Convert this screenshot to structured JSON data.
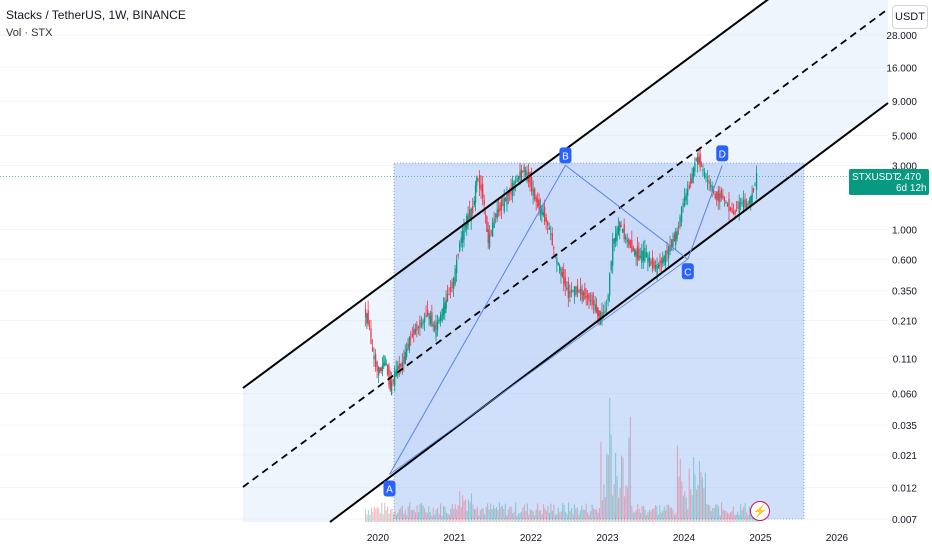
{
  "header": {
    "title": "Stacks / TetherUS, 1W, BINANCE",
    "volume_label": "Vol · STX",
    "currency": "USDT"
  },
  "price_tag": {
    "symbol": "STXUSDT",
    "price": "2.470",
    "countdown": "6d 12h"
  },
  "colors": {
    "up": "#089981",
    "down": "#f23645",
    "channel_fill": "#dbe9fb",
    "pattern_fill": "#a9c4f5",
    "marker": "#2962ff",
    "price_line": "#089981"
  },
  "chart_data": {
    "type": "candlestick",
    "scale": "log",
    "ylim": [
      0.007,
      28
    ],
    "y_ticks": [
      "28.000",
      "16.000",
      "9.000",
      "5.000",
      "3.000",
      "1.000",
      "0.600",
      "0.350",
      "0.210",
      "0.110",
      "0.060",
      "0.035",
      "0.021",
      "0.012",
      "0.007"
    ],
    "x_ticks": [
      "2020",
      "2021",
      "2022",
      "2023",
      "2024",
      "2025",
      "2026"
    ],
    "pattern_points": [
      {
        "label": "A",
        "date": 2020.15,
        "price": 0.015
      },
      {
        "label": "B",
        "date": 2022.45,
        "price": 3.0
      },
      {
        "label": "C",
        "date": 2024.05,
        "price": 0.6
      },
      {
        "label": "D",
        "date": 2024.5,
        "price": 3.0
      }
    ],
    "close_series": [
      [
        2019.83,
        0.24
      ],
      [
        2019.88,
        0.21
      ],
      [
        2019.94,
        0.12
      ],
      [
        2020.0,
        0.09
      ],
      [
        2020.05,
        0.09
      ],
      [
        2020.1,
        0.11
      ],
      [
        2020.17,
        0.065
      ],
      [
        2020.25,
        0.09
      ],
      [
        2020.33,
        0.1
      ],
      [
        2020.42,
        0.15
      ],
      [
        2020.5,
        0.18
      ],
      [
        2020.58,
        0.2
      ],
      [
        2020.66,
        0.24
      ],
      [
        2020.75,
        0.18
      ],
      [
        2020.83,
        0.23
      ],
      [
        2020.9,
        0.29
      ],
      [
        2021.0,
        0.42
      ],
      [
        2021.08,
        0.8
      ],
      [
        2021.17,
        1.2
      ],
      [
        2021.25,
        1.4
      ],
      [
        2021.3,
        2.5
      ],
      [
        2021.38,
        1.8
      ],
      [
        2021.45,
        0.8
      ],
      [
        2021.55,
        1.3
      ],
      [
        2021.66,
        1.6
      ],
      [
        2021.75,
        2.0
      ],
      [
        2021.83,
        2.4
      ],
      [
        2021.92,
        2.8
      ],
      [
        2022.0,
        2.2
      ],
      [
        2022.08,
        1.6
      ],
      [
        2022.17,
        1.3
      ],
      [
        2022.25,
        1.0
      ],
      [
        2022.33,
        0.62
      ],
      [
        2022.42,
        0.45
      ],
      [
        2022.5,
        0.33
      ],
      [
        2022.58,
        0.36
      ],
      [
        2022.66,
        0.34
      ],
      [
        2022.75,
        0.31
      ],
      [
        2022.83,
        0.28
      ],
      [
        2022.9,
        0.22
      ],
      [
        2023.0,
        0.26
      ],
      [
        2023.08,
        0.8
      ],
      [
        2023.17,
        1.1
      ],
      [
        2023.25,
        0.85
      ],
      [
        2023.33,
        0.72
      ],
      [
        2023.42,
        0.62
      ],
      [
        2023.5,
        0.68
      ],
      [
        2023.58,
        0.55
      ],
      [
        2023.66,
        0.52
      ],
      [
        2023.75,
        0.62
      ],
      [
        2023.83,
        0.75
      ],
      [
        2023.92,
        0.95
      ],
      [
        2024.0,
        1.6
      ],
      [
        2024.08,
        2.1
      ],
      [
        2024.17,
        3.4
      ],
      [
        2024.22,
        3.1
      ],
      [
        2024.3,
        2.4
      ],
      [
        2024.38,
        2.0
      ],
      [
        2024.42,
        1.7
      ],
      [
        2024.5,
        1.8
      ],
      [
        2024.58,
        1.5
      ],
      [
        2024.66,
        1.3
      ],
      [
        2024.75,
        1.6
      ],
      [
        2024.83,
        1.5
      ],
      [
        2024.9,
        1.8
      ],
      [
        2024.96,
        2.47
      ]
    ]
  }
}
